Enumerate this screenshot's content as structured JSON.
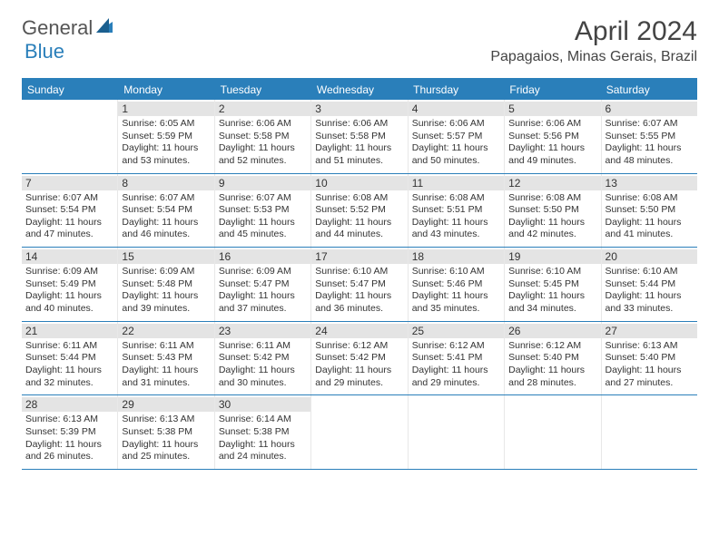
{
  "brand": {
    "text1": "General",
    "text2": "Blue"
  },
  "title": "April 2024",
  "location": "Papagaios, Minas Gerais, Brazil",
  "colors": {
    "accent": "#2a7fba",
    "daynum_bg": "#e4e4e4",
    "text": "#333333",
    "background": "#ffffff"
  },
  "dayheads": [
    "Sunday",
    "Monday",
    "Tuesday",
    "Wednesday",
    "Thursday",
    "Friday",
    "Saturday"
  ],
  "weeks": [
    [
      null,
      {
        "n": "1",
        "sr": "Sunrise: 6:05 AM",
        "ss": "Sunset: 5:59 PM",
        "d1": "Daylight: 11 hours",
        "d2": "and 53 minutes."
      },
      {
        "n": "2",
        "sr": "Sunrise: 6:06 AM",
        "ss": "Sunset: 5:58 PM",
        "d1": "Daylight: 11 hours",
        "d2": "and 52 minutes."
      },
      {
        "n": "3",
        "sr": "Sunrise: 6:06 AM",
        "ss": "Sunset: 5:58 PM",
        "d1": "Daylight: 11 hours",
        "d2": "and 51 minutes."
      },
      {
        "n": "4",
        "sr": "Sunrise: 6:06 AM",
        "ss": "Sunset: 5:57 PM",
        "d1": "Daylight: 11 hours",
        "d2": "and 50 minutes."
      },
      {
        "n": "5",
        "sr": "Sunrise: 6:06 AM",
        "ss": "Sunset: 5:56 PM",
        "d1": "Daylight: 11 hours",
        "d2": "and 49 minutes."
      },
      {
        "n": "6",
        "sr": "Sunrise: 6:07 AM",
        "ss": "Sunset: 5:55 PM",
        "d1": "Daylight: 11 hours",
        "d2": "and 48 minutes."
      }
    ],
    [
      {
        "n": "7",
        "sr": "Sunrise: 6:07 AM",
        "ss": "Sunset: 5:54 PM",
        "d1": "Daylight: 11 hours",
        "d2": "and 47 minutes."
      },
      {
        "n": "8",
        "sr": "Sunrise: 6:07 AM",
        "ss": "Sunset: 5:54 PM",
        "d1": "Daylight: 11 hours",
        "d2": "and 46 minutes."
      },
      {
        "n": "9",
        "sr": "Sunrise: 6:07 AM",
        "ss": "Sunset: 5:53 PM",
        "d1": "Daylight: 11 hours",
        "d2": "and 45 minutes."
      },
      {
        "n": "10",
        "sr": "Sunrise: 6:08 AM",
        "ss": "Sunset: 5:52 PM",
        "d1": "Daylight: 11 hours",
        "d2": "and 44 minutes."
      },
      {
        "n": "11",
        "sr": "Sunrise: 6:08 AM",
        "ss": "Sunset: 5:51 PM",
        "d1": "Daylight: 11 hours",
        "d2": "and 43 minutes."
      },
      {
        "n": "12",
        "sr": "Sunrise: 6:08 AM",
        "ss": "Sunset: 5:50 PM",
        "d1": "Daylight: 11 hours",
        "d2": "and 42 minutes."
      },
      {
        "n": "13",
        "sr": "Sunrise: 6:08 AM",
        "ss": "Sunset: 5:50 PM",
        "d1": "Daylight: 11 hours",
        "d2": "and 41 minutes."
      }
    ],
    [
      {
        "n": "14",
        "sr": "Sunrise: 6:09 AM",
        "ss": "Sunset: 5:49 PM",
        "d1": "Daylight: 11 hours",
        "d2": "and 40 minutes."
      },
      {
        "n": "15",
        "sr": "Sunrise: 6:09 AM",
        "ss": "Sunset: 5:48 PM",
        "d1": "Daylight: 11 hours",
        "d2": "and 39 minutes."
      },
      {
        "n": "16",
        "sr": "Sunrise: 6:09 AM",
        "ss": "Sunset: 5:47 PM",
        "d1": "Daylight: 11 hours",
        "d2": "and 37 minutes."
      },
      {
        "n": "17",
        "sr": "Sunrise: 6:10 AM",
        "ss": "Sunset: 5:47 PM",
        "d1": "Daylight: 11 hours",
        "d2": "and 36 minutes."
      },
      {
        "n": "18",
        "sr": "Sunrise: 6:10 AM",
        "ss": "Sunset: 5:46 PM",
        "d1": "Daylight: 11 hours",
        "d2": "and 35 minutes."
      },
      {
        "n": "19",
        "sr": "Sunrise: 6:10 AM",
        "ss": "Sunset: 5:45 PM",
        "d1": "Daylight: 11 hours",
        "d2": "and 34 minutes."
      },
      {
        "n": "20",
        "sr": "Sunrise: 6:10 AM",
        "ss": "Sunset: 5:44 PM",
        "d1": "Daylight: 11 hours",
        "d2": "and 33 minutes."
      }
    ],
    [
      {
        "n": "21",
        "sr": "Sunrise: 6:11 AM",
        "ss": "Sunset: 5:44 PM",
        "d1": "Daylight: 11 hours",
        "d2": "and 32 minutes."
      },
      {
        "n": "22",
        "sr": "Sunrise: 6:11 AM",
        "ss": "Sunset: 5:43 PM",
        "d1": "Daylight: 11 hours",
        "d2": "and 31 minutes."
      },
      {
        "n": "23",
        "sr": "Sunrise: 6:11 AM",
        "ss": "Sunset: 5:42 PM",
        "d1": "Daylight: 11 hours",
        "d2": "and 30 minutes."
      },
      {
        "n": "24",
        "sr": "Sunrise: 6:12 AM",
        "ss": "Sunset: 5:42 PM",
        "d1": "Daylight: 11 hours",
        "d2": "and 29 minutes."
      },
      {
        "n": "25",
        "sr": "Sunrise: 6:12 AM",
        "ss": "Sunset: 5:41 PM",
        "d1": "Daylight: 11 hours",
        "d2": "and 29 minutes."
      },
      {
        "n": "26",
        "sr": "Sunrise: 6:12 AM",
        "ss": "Sunset: 5:40 PM",
        "d1": "Daylight: 11 hours",
        "d2": "and 28 minutes."
      },
      {
        "n": "27",
        "sr": "Sunrise: 6:13 AM",
        "ss": "Sunset: 5:40 PM",
        "d1": "Daylight: 11 hours",
        "d2": "and 27 minutes."
      }
    ],
    [
      {
        "n": "28",
        "sr": "Sunrise: 6:13 AM",
        "ss": "Sunset: 5:39 PM",
        "d1": "Daylight: 11 hours",
        "d2": "and 26 minutes."
      },
      {
        "n": "29",
        "sr": "Sunrise: 6:13 AM",
        "ss": "Sunset: 5:38 PM",
        "d1": "Daylight: 11 hours",
        "d2": "and 25 minutes."
      },
      {
        "n": "30",
        "sr": "Sunrise: 6:14 AM",
        "ss": "Sunset: 5:38 PM",
        "d1": "Daylight: 11 hours",
        "d2": "and 24 minutes."
      },
      null,
      null,
      null,
      null
    ]
  ]
}
